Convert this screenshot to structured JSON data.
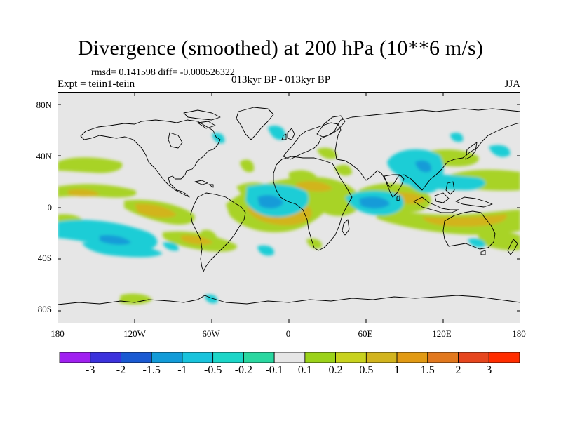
{
  "title": "Divergence (smoothed) at 200 hPa (10**6 m/s)",
  "stats": "rmsd= 0.141598 diff= -0.000526322",
  "experiment": "Expt = teiin1-teiin",
  "subtitle": "013kyr BP - 013kyr BP",
  "season": "JJA",
  "lat_labels": [
    "80N",
    "40N",
    "0",
    "40S",
    "80S"
  ],
  "lon_labels": [
    "180",
    "120W",
    "60W",
    "0",
    "60E",
    "120E",
    "180"
  ],
  "colorbar": {
    "colors": [
      "#a020f0",
      "#3c32dc",
      "#1a5ad2",
      "#129bd8",
      "#19c3dc",
      "#1cd6c8",
      "#2ad7a0",
      "#e6e6e6",
      "#9bd21a",
      "#c8d21e",
      "#d2b41e",
      "#e19a14",
      "#e1781e",
      "#e6461e",
      "#ff2d00"
    ],
    "labels": [
      "-3",
      "-2",
      "-1.5",
      "-1",
      "-0.5",
      "-0.2",
      "-0.1",
      "0.1",
      "0.2",
      "0.5",
      "1",
      "1.5",
      "2",
      "3"
    ]
  }
}
